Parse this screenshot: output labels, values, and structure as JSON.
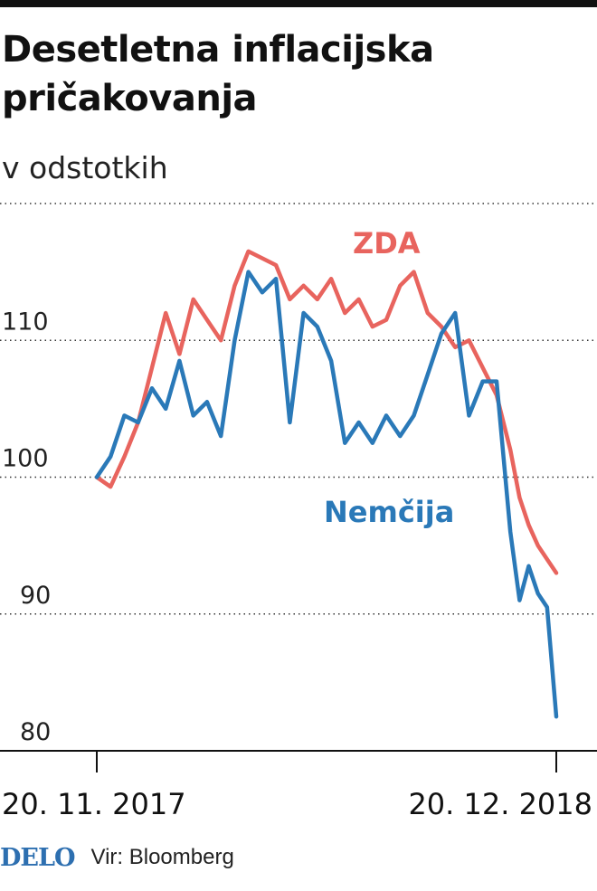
{
  "header": {
    "title": "Desetletna inflacijska pričakovanja",
    "subtitle": "v odstotkih"
  },
  "footer": {
    "logo": "DELO",
    "source": "Vir: Bloomberg"
  },
  "colors": {
    "usa": "#e8645e",
    "germany": "#2a79b8",
    "grid": "#333333",
    "axis": "#111111"
  },
  "chart_data": {
    "type": "line",
    "title": "Desetletna inflacijska pričakovanja",
    "subtitle": "v odstotkih",
    "xlabel": "",
    "ylabel": "",
    "ylim": [
      80,
      120
    ],
    "yticks": [
      80,
      90,
      100,
      110
    ],
    "grid": "horizontal-dotted",
    "xticks": [
      {
        "x": 0,
        "label": "20. 11. 2017"
      },
      {
        "x": 100,
        "label": "20. 12. 2018"
      }
    ],
    "x": [
      0,
      3,
      6,
      9,
      12,
      15,
      18,
      21,
      24,
      27,
      30,
      33,
      36,
      39,
      42,
      45,
      48,
      51,
      54,
      57,
      60,
      63,
      66,
      69,
      72,
      75,
      78,
      81,
      84,
      87,
      90,
      92,
      94,
      96,
      98,
      100
    ],
    "series": [
      {
        "name": "ZDA",
        "color": "#e8645e",
        "values": [
          100,
          99.3,
          101.5,
          104,
          108,
          112,
          109,
          113,
          111.5,
          110,
          114,
          116.5,
          116,
          115.5,
          113,
          114,
          113,
          114.5,
          112,
          113,
          111,
          111.5,
          114,
          115,
          112,
          111,
          109.5,
          110,
          108,
          106,
          102,
          98.5,
          96.5,
          95,
          94,
          93
        ]
      },
      {
        "name": "Nemčija",
        "color": "#2a79b8",
        "values": [
          100,
          101.5,
          104.5,
          104,
          106.5,
          105,
          108.5,
          104.5,
          105.5,
          103,
          110,
          115,
          113.5,
          114.5,
          104,
          112,
          111,
          108.5,
          102.5,
          104,
          102.5,
          104.5,
          103,
          104.5,
          107.5,
          110.5,
          112,
          104.5,
          107,
          107,
          96,
          91,
          93.5,
          91.5,
          90.5,
          82.5
        ]
      }
    ]
  }
}
